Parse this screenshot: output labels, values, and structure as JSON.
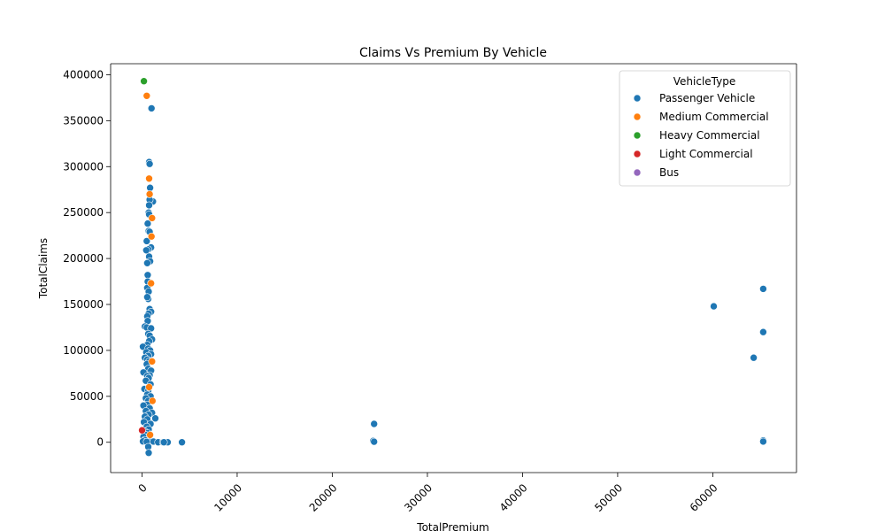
{
  "chart_data": {
    "type": "scatter",
    "title": "Claims Vs Premium By Vehicle",
    "xlabel": "TotalPremium",
    "ylabel": "TotalClaims",
    "xlim": [
      -3300,
      68800
    ],
    "ylim": [
      -33000,
      412000
    ],
    "xticks": [
      0,
      10000,
      20000,
      30000,
      40000,
      50000,
      60000
    ],
    "yticks": [
      0,
      50000,
      100000,
      150000,
      200000,
      250000,
      300000,
      350000,
      400000
    ],
    "grid": false,
    "legend": {
      "title": "VehicleType",
      "placement": "top-right"
    },
    "series": [
      {
        "name": "Passenger Vehicle",
        "color": "#1f77b4",
        "points": [
          [
            1000,
            363500
          ],
          [
            750,
            305000
          ],
          [
            800,
            303000
          ],
          [
            850,
            277000
          ],
          [
            1150,
            262000
          ],
          [
            800,
            264000
          ],
          [
            750,
            258000
          ],
          [
            700,
            250000
          ],
          [
            750,
            248000
          ],
          [
            600,
            238000
          ],
          [
            700,
            230000
          ],
          [
            800,
            229000
          ],
          [
            500,
            219000
          ],
          [
            950,
            212000
          ],
          [
            650,
            210000
          ],
          [
            450,
            209000
          ],
          [
            750,
            202000
          ],
          [
            850,
            197000
          ],
          [
            550,
            195000
          ],
          [
            600,
            182000
          ],
          [
            600,
            175000
          ],
          [
            550,
            168000
          ],
          [
            700,
            164000
          ],
          [
            650,
            156000
          ],
          [
            550,
            158000
          ],
          [
            800,
            145000
          ],
          [
            950,
            142000
          ],
          [
            700,
            140000
          ],
          [
            550,
            137000
          ],
          [
            600,
            132000
          ],
          [
            300,
            126000
          ],
          [
            500,
            125000
          ],
          [
            950,
            124000
          ],
          [
            650,
            118000
          ],
          [
            800,
            116000
          ],
          [
            1050,
            112000
          ],
          [
            750,
            110000
          ],
          [
            550,
            106000
          ],
          [
            100,
            104000
          ],
          [
            650,
            102000
          ],
          [
            850,
            100000
          ],
          [
            450,
            98000
          ],
          [
            950,
            96000
          ],
          [
            650,
            94000
          ],
          [
            300,
            92000
          ],
          [
            550,
            90000
          ],
          [
            750,
            88000
          ],
          [
            500,
            85000
          ],
          [
            650,
            80000
          ],
          [
            950,
            78000
          ],
          [
            150,
            76000
          ],
          [
            800,
            73000
          ],
          [
            550,
            72000
          ],
          [
            700,
            70000
          ],
          [
            400,
            67000
          ],
          [
            900,
            63000
          ],
          [
            250,
            58000
          ],
          [
            650,
            56000
          ],
          [
            550,
            52000
          ],
          [
            900,
            50000
          ],
          [
            400,
            48000
          ],
          [
            650,
            45000
          ],
          [
            550,
            41000
          ],
          [
            150,
            40000
          ],
          [
            800,
            37000
          ],
          [
            400,
            34000
          ],
          [
            1050,
            32000
          ],
          [
            700,
            30000
          ],
          [
            300,
            28000
          ],
          [
            1400,
            26000
          ],
          [
            550,
            25000
          ],
          [
            200,
            22000
          ],
          [
            900,
            20000
          ],
          [
            500,
            17000
          ],
          [
            700,
            14000
          ],
          [
            250,
            12000
          ],
          [
            600,
            10000
          ],
          [
            400,
            8000
          ],
          [
            150,
            6000
          ],
          [
            750,
            4000
          ],
          [
            300,
            2500
          ],
          [
            900,
            1500
          ],
          [
            100,
            1000
          ],
          [
            500,
            500
          ],
          [
            1200,
            800
          ],
          [
            650,
            -5000
          ],
          [
            700,
            -11500
          ],
          [
            1700,
            0
          ],
          [
            2200,
            0
          ],
          [
            2700,
            0
          ],
          [
            4200,
            0
          ],
          [
            2300,
            0
          ],
          [
            24400,
            20000
          ],
          [
            24300,
            1500
          ],
          [
            24400,
            600
          ],
          [
            60100,
            148000
          ],
          [
            64300,
            92000
          ],
          [
            65300,
            167000
          ],
          [
            65300,
            120000
          ],
          [
            65300,
            2000
          ],
          [
            65300,
            800
          ]
        ]
      },
      {
        "name": "Medium Commercial",
        "color": "#ff7f0e",
        "points": [
          [
            500,
            377000
          ],
          [
            750,
            287000
          ],
          [
            800,
            270000
          ],
          [
            1050,
            244000
          ],
          [
            1000,
            224000
          ],
          [
            950,
            173000
          ],
          [
            1050,
            88000
          ],
          [
            750,
            60000
          ],
          [
            1100,
            45000
          ],
          [
            850,
            8000
          ]
        ]
      },
      {
        "name": "Heavy Commercial",
        "color": "#2ca02c",
        "points": [
          [
            200,
            393000
          ]
        ]
      },
      {
        "name": "Light Commercial",
        "color": "#d62728",
        "points": [
          [
            0,
            13000
          ]
        ]
      },
      {
        "name": "Bus",
        "color": "#9467bd",
        "points": []
      }
    ]
  }
}
